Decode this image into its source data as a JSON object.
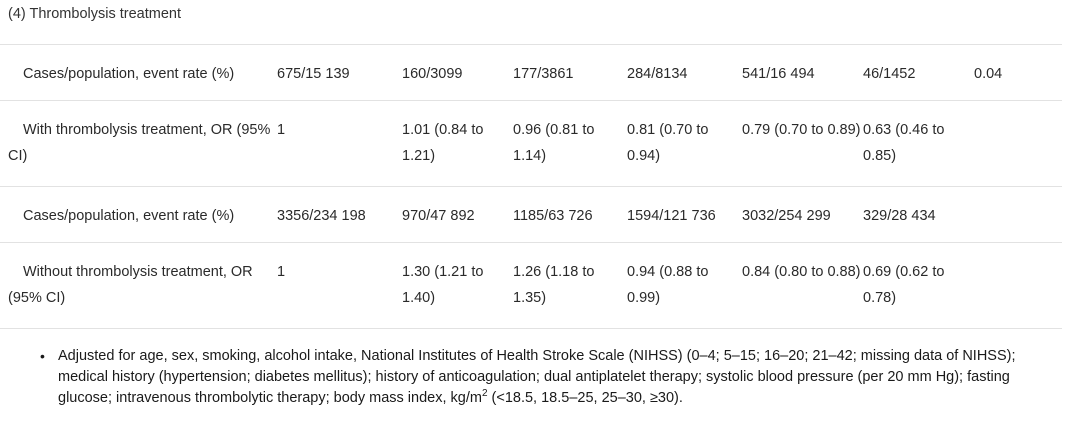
{
  "section_title": "(4) Thrombolysis treatment",
  "rows": [
    {
      "label": "Cases/population, event rate (%)",
      "cells": [
        "675/15 139",
        "160/3099",
        "177/3861",
        "284/8134",
        "541/16 494",
        "46/1452",
        "0.04"
      ]
    },
    {
      "label": "With thrombolysis treatment, OR (95% CI)",
      "cells": [
        "1",
        "1.01 (0.84 to 1.21)",
        "0.96 (0.81 to 1.14)",
        "0.81 (0.70 to 0.94)",
        "0.79 (0.70 to 0.89)",
        "0.63 (0.46 to 0.85)",
        ""
      ]
    },
    {
      "label": "Cases/population, event rate (%)",
      "cells": [
        "3356/234 198",
        "970/47 892",
        "1185/63 726",
        "1594/121 736",
        "3032/254 299",
        "329/28 434",
        ""
      ]
    },
    {
      "label": "Without thrombolysis treatment, OR (95% CI)",
      "cells": [
        "1",
        "1.30 (1.21 to 1.40)",
        "1.26 (1.18 to 1.35)",
        "0.94 (0.88 to 0.99)",
        "0.84 (0.80 to 0.88)",
        "0.69 (0.62 to 0.78)",
        ""
      ]
    }
  ],
  "footnote": {
    "text_before": "Adjusted for age, sex, smoking, alcohol intake, National Institutes of Health Stroke Scale (NIHSS) (0–4; 5–15; 16–20; 21–42; missing data of NIHSS); medical history (hypertension; diabetes mellitus); history of anticoagulation; dual antiplatelet therapy; systolic blood pressure (per 20 mm Hg); fasting glucose; intravenous thrombolytic therapy; body mass index, kg/m",
    "superscript": "2",
    "text_after": " (<18.5, 18.5–25, 25–30, ≥30).",
    "bullet": "•"
  }
}
